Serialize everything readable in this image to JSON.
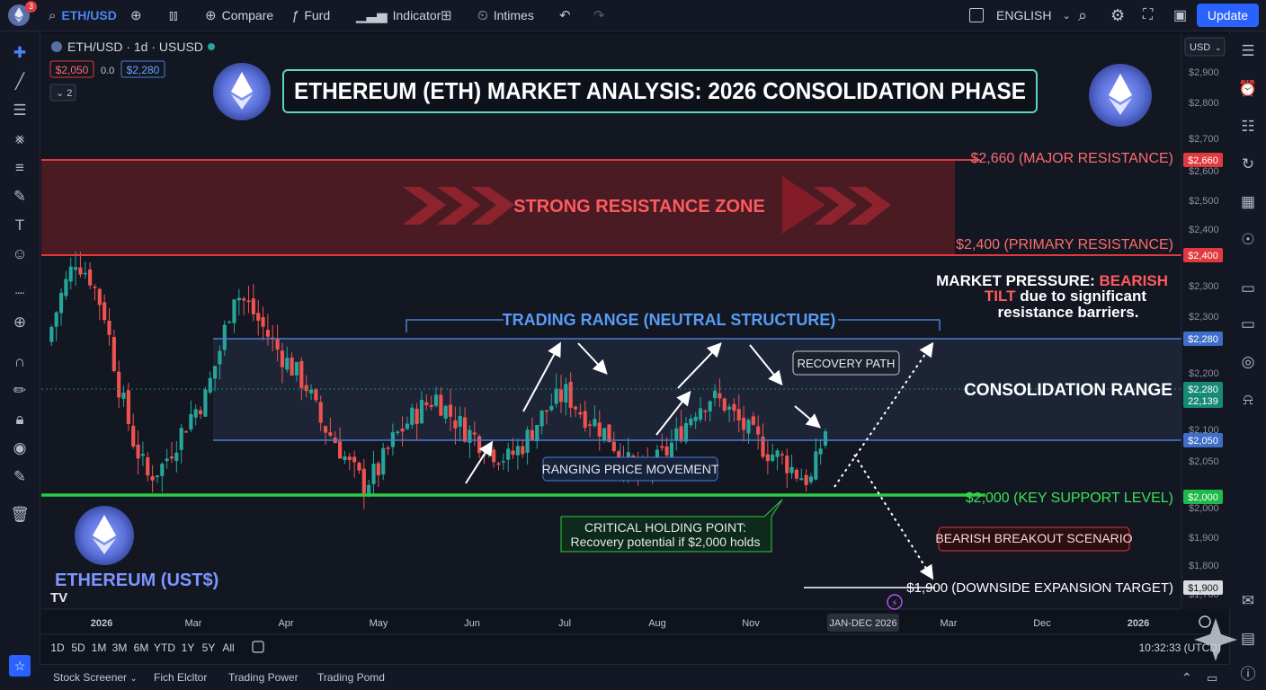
{
  "topbar": {
    "logo_badge": "3",
    "symbol": "ETH/USD",
    "compare": "Compare",
    "furd": "Furd",
    "indicator": "Indicator",
    "intimes": "Intimes",
    "language": "ENGLISH",
    "update": "Update"
  },
  "legend": {
    "symbol_line": "ETH/USD · 1d · USUSD",
    "price_red": "$2,050",
    "change": "0.0",
    "price_blue": "$2,280",
    "collapse": "2"
  },
  "annotations": {
    "title": "ETHEREUM (ETH) MARKET ANALYSIS: 2026 CONSOLIDATION PHASE",
    "resistance_zone": "STRONG RESISTANCE ZONE",
    "major_resistance": "$2,660 (MAJOR RESISTANCE)",
    "primary_resistance": "$2,400 (PRIMARY RESISTANCE)",
    "pressure_1": "MARKET PRESSURE: ",
    "pressure_bearish": "BEARISH",
    "pressure_2": "TILT",
    "pressure_3": " due to significant",
    "pressure_4": "resistance barriers.",
    "trading_range": "TRADING RANGE (NEUTRAL STRUCTURE)",
    "recovery_path": "RECOVERY PATH",
    "consolidation_range": "CONSOLIDATION RANGE",
    "ranging_movement": "RANGING PRICE MOVEMENT",
    "key_support": "$2,000 (KEY SUPPORT LEVEL)",
    "critical_1": "CRITICAL HOLDING POINT:",
    "critical_2": "Recovery potential if $2,000 holds",
    "bearish_breakout": "BEARISH BREAKOUT SCENARIO",
    "downside_target": "$1,900 (DOWNSIDE EXPANSION TARGET)",
    "eth_logo_text": "ETHEREUM (UST$)",
    "tv_logo": "TV",
    "time_range_label": "JAN-DEC 2026"
  },
  "price_axis": {
    "currency": "USD",
    "ticks": [
      "$2,900",
      "$2,800",
      "$2,700",
      "$2,600",
      "$2,500",
      "$2,400",
      "$2,300",
      "$2,300",
      "$2,200",
      "$2,100",
      "$2,050",
      "$2,000",
      "$1,900",
      "$1,800",
      "$1,700"
    ],
    "badges": [
      {
        "label": "$2,660",
        "color": "#e0393e"
      },
      {
        "label": "$2,400",
        "color": "#e0393e"
      },
      {
        "label": "$2,280",
        "color": "#3d6ec9"
      },
      {
        "label": "$2,280",
        "color": "#168a74"
      },
      {
        "label": "22,139",
        "color": "#168a74"
      },
      {
        "label": "$2,050",
        "color": "#3d6ec9"
      },
      {
        "label": "$2,000",
        "color": "#1fb84a"
      },
      {
        "label": "$1,900",
        "color": "#d9dbe0"
      }
    ]
  },
  "time_axis": {
    "labels": [
      "2026",
      "Mar",
      "Apr",
      "May",
      "Jun",
      "Jul",
      "Aug",
      "Nov",
      "Mar",
      "Dec",
      "2026"
    ]
  },
  "timeframes": [
    "1D",
    "5D",
    "1M",
    "3M",
    "6M",
    "YTD",
    "1Y",
    "5Y",
    "All"
  ],
  "clock": "10:32:33 (UTCD)",
  "bottom_tabs": [
    "Stock Screener",
    "Fich Elcltor",
    "Trading Power",
    "Trading Pomd"
  ],
  "colors": {
    "up": "#26a69a",
    "down": "#ef5350",
    "resistance": "#e0393e",
    "range": "#4a7fd4",
    "support": "#2ecc40"
  },
  "chart_data": {
    "type": "candlestick",
    "title": "ETHEREUM (ETH) MARKET ANALYSIS: 2026 CONSOLIDATION PHASE",
    "symbol": "ETH/USD",
    "interval": "1d",
    "x_labels": [
      "2026",
      "Mar",
      "Apr",
      "May",
      "Jun",
      "Jul",
      "Aug",
      "Nov",
      "Mar",
      "Dec",
      "2026"
    ],
    "ylim": [
      1650,
      2960
    ],
    "levels": [
      {
        "price": 2660,
        "label": "$2,660 (MAJOR RESISTANCE)"
      },
      {
        "price": 2400,
        "label": "$2,400 (PRIMARY RESISTANCE)"
      },
      {
        "price": 2280,
        "label": "range top"
      },
      {
        "price": 2050,
        "label": "range bottom"
      },
      {
        "price": 2000,
        "label": "$2,000 (KEY SUPPORT LEVEL)"
      },
      {
        "price": 1900,
        "label": "$1,900 (DOWNSIDE EXPANSION TARGET)"
      }
    ],
    "close_path": [
      2420,
      2550,
      2650,
      2600,
      2500,
      2300,
      2150,
      2050,
      2080,
      2150,
      2220,
      2270,
      2400,
      2560,
      2520,
      2460,
      2400,
      2350,
      2300,
      2200,
      2150,
      2080,
      2030,
      2070,
      2150,
      2200,
      2240,
      2270,
      2220,
      2180,
      2150,
      2120,
      2100,
      2140,
      2200,
      2250,
      2280,
      2230,
      2200,
      2160,
      2100,
      2060,
      2080,
      2120,
      2180,
      2240,
      2270,
      2250,
      2200,
      2160,
      2120,
      2100,
      2060,
      2040,
      2180
    ],
    "projections": [
      {
        "name": "RECOVERY PATH",
        "from": 2010,
        "to": 2270
      },
      {
        "name": "BEARISH BREAKOUT SCENARIO",
        "from": 2060,
        "to": 1910
      }
    ]
  }
}
